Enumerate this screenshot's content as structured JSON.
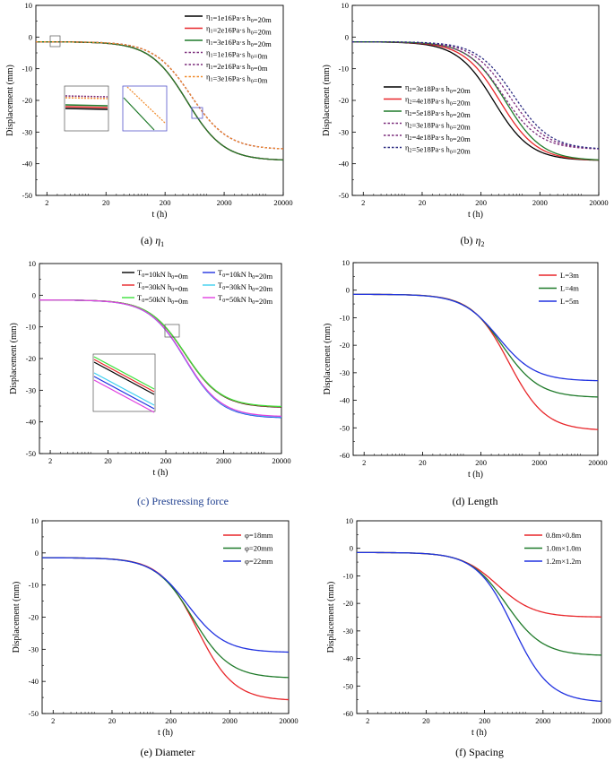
{
  "colors": {
    "black": "#000000",
    "red": "#e8262a",
    "green": "#1f7a2a",
    "blue": "#2132e0",
    "orange": "#f08a2a",
    "purple": "#7a2a7a",
    "navy": "#2a2a80",
    "lime": "#3ce03c",
    "cyan": "#40d0f0",
    "magenta": "#e040e0",
    "caption_blue": "#1f3f8f"
  },
  "chart_data": [
    {
      "id": "a",
      "type": "line",
      "caption": "(a) η₁",
      "caption_prefix": "(a) ",
      "caption_italic": "η",
      "caption_sub": "1",
      "xlabel": "t (h)",
      "ylabel": "Displacement (mm)",
      "xscale": "log",
      "xlim": [
        1.3,
        20000
      ],
      "ylim": [
        -50,
        10
      ],
      "xticks": [
        2,
        20,
        200,
        2000,
        20000
      ],
      "yticks": [
        10,
        0,
        -10,
        -20,
        -30,
        -40,
        -50
      ],
      "legend_position": "top-right",
      "series": [
        {
          "name": "η1=1e16Pa·s  h0=20m",
          "color": "#000000",
          "dash": false,
          "start": -1.5,
          "final": -39.0,
          "t50": 470,
          "steep": 3.2
        },
        {
          "name": "η1=2e16Pa·s  h0=20m",
          "color": "#e8262a",
          "dash": false,
          "start": -1.5,
          "final": -39.0,
          "t50": 470,
          "steep": 3.2
        },
        {
          "name": "η1=3e16Pa·s  h0=20m",
          "color": "#1f7a2a",
          "dash": false,
          "start": -1.5,
          "final": -39.0,
          "t50": 470,
          "steep": 3.2
        },
        {
          "name": "η1=1e16Pa·s  h0=0m",
          "color": "#7a2a7a",
          "dash": true,
          "start": -1.5,
          "final": -35.5,
          "t50": 550,
          "steep": 3.2
        },
        {
          "name": "η1=2e16Pa·s  h0=0m",
          "color": "#7a2a7a",
          "dash": true,
          "start": -1.5,
          "final": -35.5,
          "t50": 550,
          "steep": 3.2
        },
        {
          "name": "η1=3e16Pa·s  h0=0m",
          "color": "#f08a2a",
          "dash": true,
          "start": -1.5,
          "final": -35.5,
          "t50": 550,
          "steep": 3.2
        }
      ]
    },
    {
      "id": "b",
      "type": "line",
      "caption": "(b) η₂",
      "caption_prefix": "(b) ",
      "caption_italic": "η",
      "caption_sub": "2",
      "xlabel": "t (h)",
      "ylabel": "Displacement (mm)",
      "xscale": "log",
      "xlim": [
        1.3,
        20000
      ],
      "ylim": [
        -50,
        10
      ],
      "xticks": [
        2,
        20,
        200,
        2000,
        20000
      ],
      "yticks": [
        10,
        0,
        -10,
        -20,
        -30,
        -40,
        -50
      ],
      "legend_position": "center-left",
      "series": [
        {
          "name": "η2=3e18Pa·s  h0=20m",
          "color": "#000000",
          "dash": false,
          "start": -1.5,
          "final": -39.0,
          "t50": 330,
          "steep": 3.2
        },
        {
          "name": "η2=4e18Pa·s  h0=20m",
          "color": "#e8262a",
          "dash": false,
          "start": -1.5,
          "final": -39.0,
          "t50": 420,
          "steep": 3.2
        },
        {
          "name": "η2=5e18Pa·s  h0=20m",
          "color": "#1f7a2a",
          "dash": false,
          "start": -1.5,
          "final": -39.0,
          "t50": 520,
          "steep": 3.2
        },
        {
          "name": "η2=3e18Pa·s  h0=20m",
          "color": "#7a2a7a",
          "dash": true,
          "start": -1.5,
          "final": -35.5,
          "t50": 480,
          "steep": 3.2
        },
        {
          "name": "η2=4e18Pa·s  h0=20m",
          "color": "#7a2a7a",
          "dash": true,
          "start": -1.5,
          "final": -35.5,
          "t50": 600,
          "steep": 3.2
        },
        {
          "name": "η2=5e18Pa·s  h0=20m",
          "color": "#2a2a80",
          "dash": true,
          "start": -1.5,
          "final": -35.5,
          "t50": 720,
          "steep": 3.2
        }
      ]
    },
    {
      "id": "c",
      "type": "line",
      "caption": "(c) Prestressing force",
      "xlabel": "t (h)",
      "ylabel": "Displacement (mm)",
      "xscale": "log",
      "xlim": [
        1.3,
        20000
      ],
      "ylim": [
        -50,
        10
      ],
      "xticks": [
        2,
        20,
        200,
        2000,
        20000
      ],
      "yticks": [
        10,
        0,
        -10,
        -20,
        -30,
        -40,
        -50
      ],
      "legend_position": "top-right",
      "series": [
        {
          "name": "T0=10kN  h0=0m",
          "color": "#000000",
          "dash": false,
          "start": -1.5,
          "final": -35.5,
          "t50": 430,
          "steep": 3.2
        },
        {
          "name": "T0=10kN  h0=20m",
          "color": "#2132e0",
          "dash": false,
          "start": -1.5,
          "final": -38.8,
          "t50": 430,
          "steep": 3.2
        },
        {
          "name": "T0=30kN  h0=0m",
          "color": "#e8262a",
          "dash": false,
          "start": -1.5,
          "final": -35.4,
          "t50": 430,
          "steep": 3.2
        },
        {
          "name": "T0=30kN  h0=20m",
          "color": "#40d0f0",
          "dash": false,
          "start": -1.5,
          "final": -38.6,
          "t50": 430,
          "steep": 3.2
        },
        {
          "name": "T0=50kN  h0=0m",
          "color": "#3ce03c",
          "dash": false,
          "start": -1.5,
          "final": -35.3,
          "t50": 430,
          "steep": 3.2
        },
        {
          "name": "T0=50kN  h0=20m",
          "color": "#e040e0",
          "dash": false,
          "start": -1.5,
          "final": -38.4,
          "t50": 430,
          "steep": 3.2
        }
      ]
    },
    {
      "id": "d",
      "type": "line",
      "caption": "(d) Length",
      "xlabel": "t (h)",
      "ylabel": "Displacement (mm)",
      "xscale": "log",
      "xlim": [
        1.3,
        20000
      ],
      "ylim": [
        -60,
        10
      ],
      "xticks": [
        2,
        20,
        200,
        2000,
        20000
      ],
      "yticks": [
        10,
        0,
        -10,
        -20,
        -30,
        -40,
        -50,
        -60
      ],
      "legend_position": "top-right",
      "series": [
        {
          "name": "L=3m",
          "color": "#e8262a",
          "dash": false,
          "start": -1.5,
          "final": -51.0,
          "t50": 600,
          "steep": 3.2
        },
        {
          "name": "L=4m",
          "color": "#1f7a2a",
          "dash": false,
          "start": -1.5,
          "final": -39.0,
          "t50": 470,
          "steep": 3.2
        },
        {
          "name": "L=5m",
          "color": "#2132e0",
          "dash": false,
          "start": -1.5,
          "final": -33.0,
          "t50": 400,
          "steep": 3.2
        }
      ]
    },
    {
      "id": "e",
      "type": "line",
      "caption": "(e) Diameter",
      "xlabel": "t (h)",
      "ylabel": "Displacement (mm)",
      "xscale": "log",
      "xlim": [
        1.3,
        20000
      ],
      "ylim": [
        -50,
        10
      ],
      "xticks": [
        2,
        20,
        200,
        2000,
        20000
      ],
      "yticks": [
        10,
        0,
        -10,
        -20,
        -30,
        -40,
        -50
      ],
      "legend_position": "top-right",
      "series": [
        {
          "name": "φ=18mm",
          "color": "#e8262a",
          "dash": false,
          "start": -1.5,
          "final": -46.0,
          "t50": 560,
          "steep": 3.2
        },
        {
          "name": "φ=20mm",
          "color": "#1f7a2a",
          "dash": false,
          "start": -1.5,
          "final": -39.0,
          "t50": 470,
          "steep": 3.2
        },
        {
          "name": "φ=22mm",
          "color": "#2132e0",
          "dash": false,
          "start": -1.5,
          "final": -31.0,
          "t50": 390,
          "steep": 3.2
        }
      ]
    },
    {
      "id": "f",
      "type": "line",
      "caption": "(f) Spacing",
      "xlabel": "t (h)",
      "ylabel": "Displacement (mm)",
      "xscale": "log",
      "xlim": [
        1.3,
        20000
      ],
      "ylim": [
        -60,
        10
      ],
      "xticks": [
        2,
        20,
        200,
        2000,
        20000
      ],
      "yticks": [
        10,
        0,
        -10,
        -20,
        -30,
        -40,
        -50,
        -60
      ],
      "legend_position": "top-right",
      "series": [
        {
          "name": "0.8m×0.8m",
          "color": "#e8262a",
          "dash": false,
          "start": -1.5,
          "final": -25.0,
          "t50": 330,
          "steep": 3.2
        },
        {
          "name": "1.0m×1.0m",
          "color": "#1f7a2a",
          "dash": false,
          "start": -1.5,
          "final": -39.0,
          "t50": 470,
          "steep": 3.2
        },
        {
          "name": "1.2m×1.2m",
          "color": "#2132e0",
          "dash": false,
          "start": -1.5,
          "final": -56.0,
          "t50": 620,
          "steep": 3.2
        }
      ]
    }
  ]
}
